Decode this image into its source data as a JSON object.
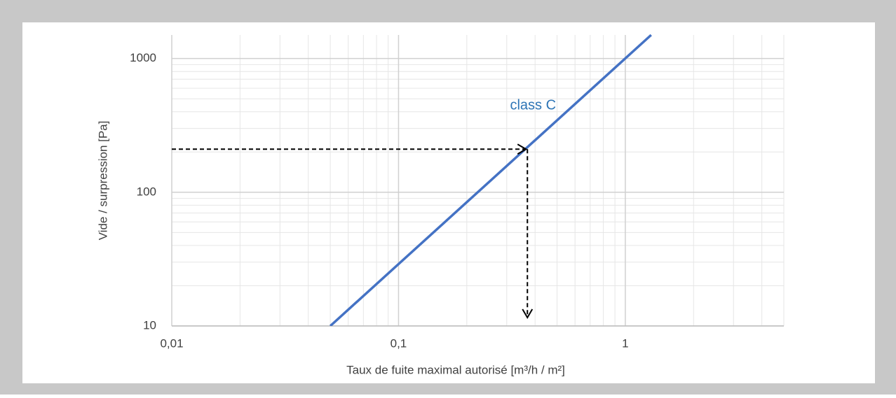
{
  "chart_data": {
    "type": "line",
    "x_label": "Taux de fuite maximal autorisé [m³/h / m²]",
    "y_label": "Vide / surpression [Pa]",
    "xlog": true,
    "ylog": true,
    "grid": true,
    "minor_grid": true,
    "xlim": [
      0.01,
      5
    ],
    "ylim": [
      10,
      1500
    ],
    "xticks": [
      {
        "value": 0.01,
        "label": "0,01"
      },
      {
        "value": 0.1,
        "label": "0,1"
      },
      1
    ],
    "yticks": [
      10,
      100,
      1000
    ],
    "series": [
      {
        "name": "class C",
        "color": "#4472c4",
        "x": [
          0.05,
          1.3
        ],
        "values": [
          10,
          1500
        ]
      }
    ],
    "annotation": {
      "text": "class C",
      "color": "#2e75b6",
      "x": 0.37,
      "y": 210
    }
  }
}
